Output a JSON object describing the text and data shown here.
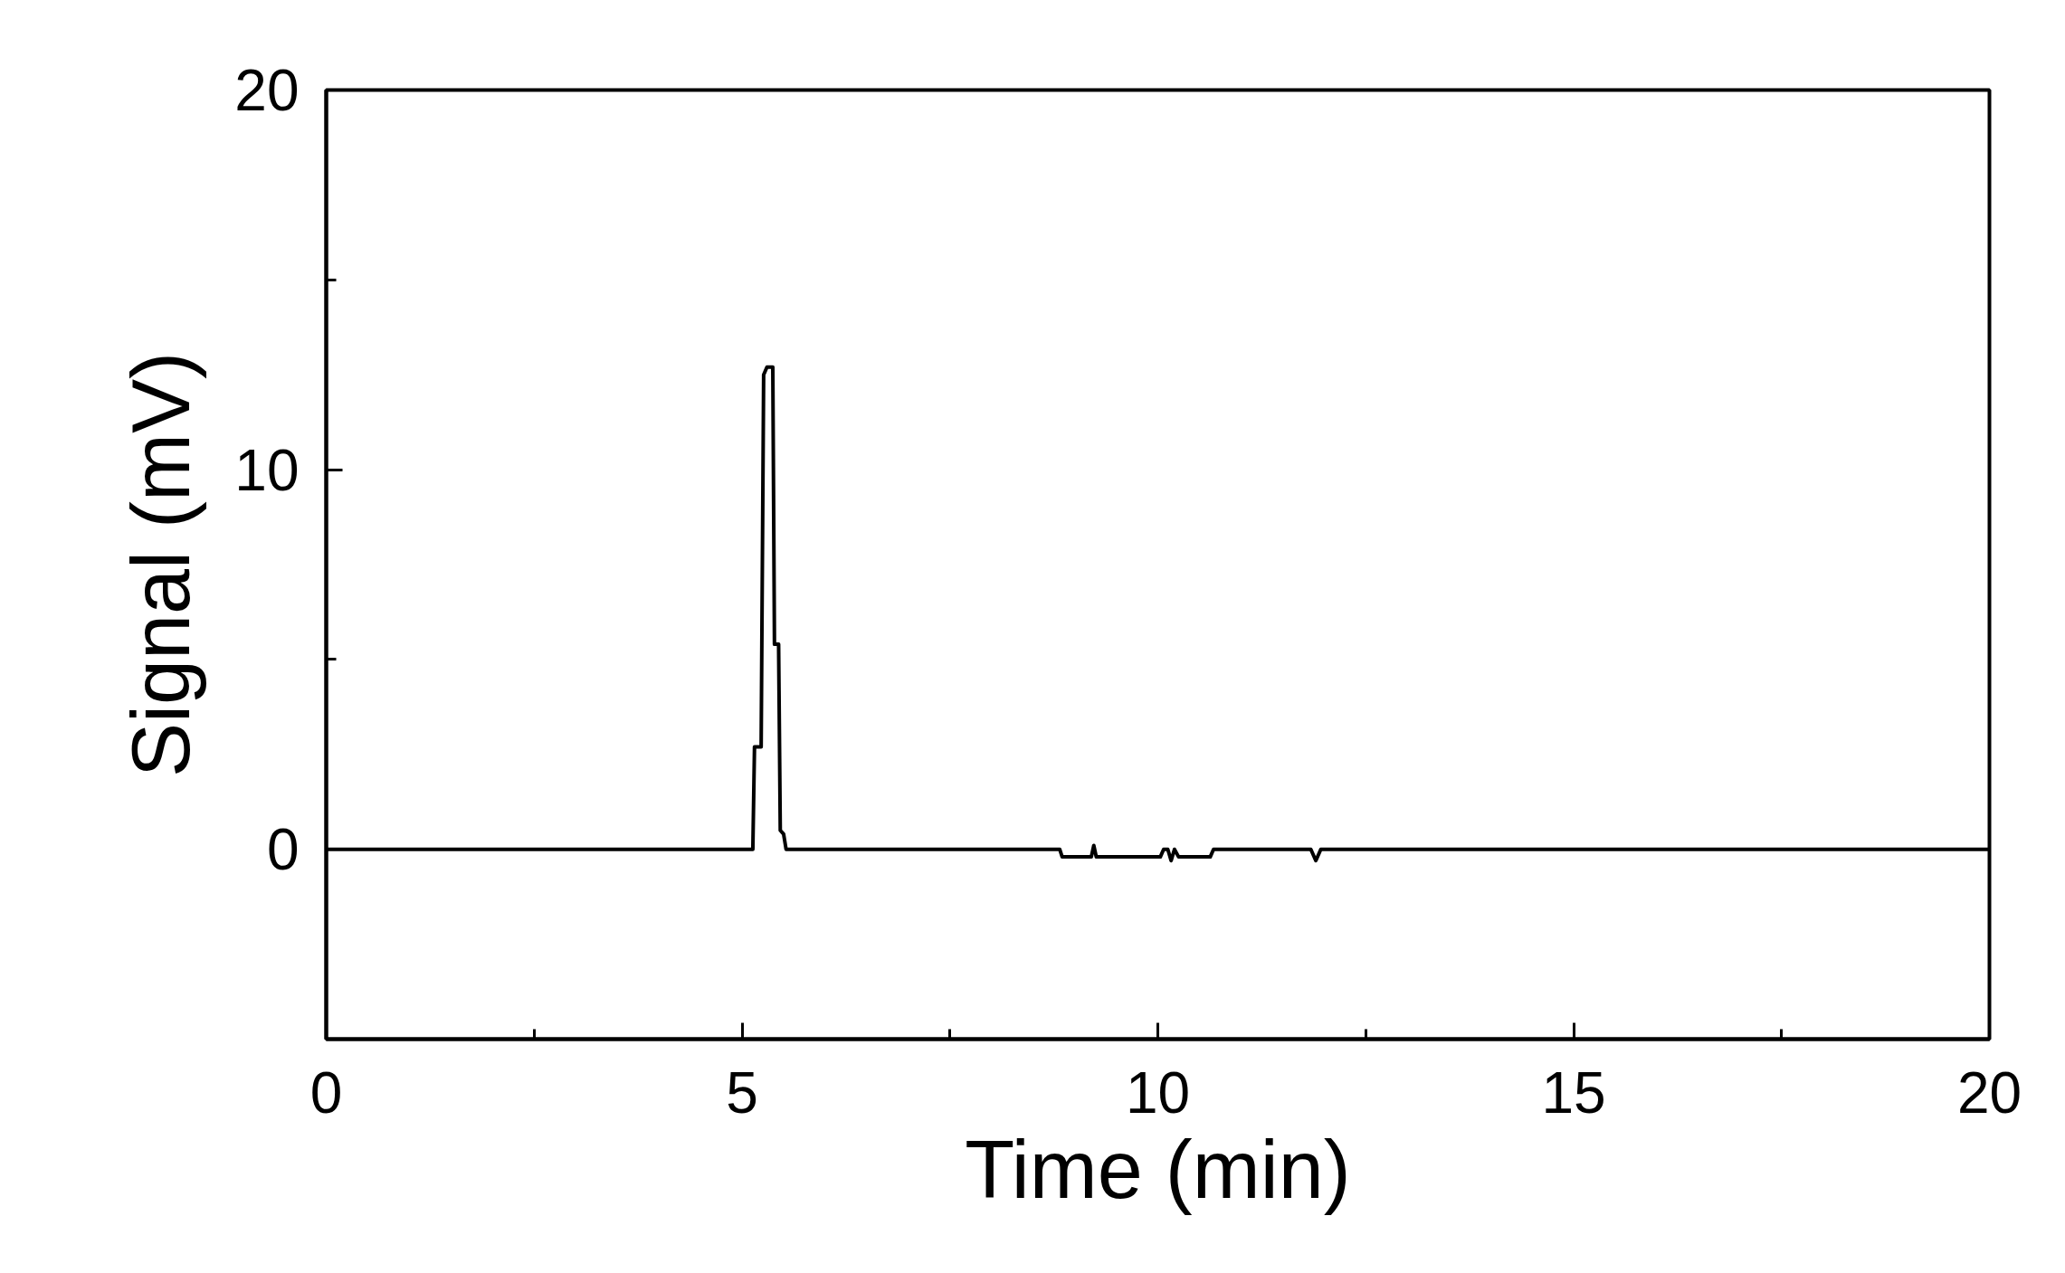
{
  "chart_data": {
    "type": "line",
    "xlabel": "Time (min)",
    "ylabel": "Signal (mV)",
    "xlim": [
      0,
      20
    ],
    "ylim": [
      -5,
      20
    ],
    "xticks": [
      0,
      {
        "value": 2.5,
        "label": null
      },
      5,
      {
        "value": 7.5,
        "label": null
      },
      10,
      {
        "value": 12.5,
        "label": null
      },
      15,
      {
        "value": 17.5,
        "label": null
      },
      20
    ],
    "yticks": [
      0,
      {
        "value": 5,
        "label": null
      },
      10,
      {
        "value": 15,
        "label": null
      },
      20
    ],
    "marker": "none",
    "line_style": "solid",
    "series": [
      {
        "color": "#000000",
        "x": [
          0,
          5.13,
          5.15,
          5.23,
          5.26,
          5.3,
          5.37,
          5.39,
          5.44,
          5.46,
          5.5,
          5.53,
          8.82,
          8.85,
          9.2,
          9.23,
          9.26,
          10.03,
          10.07,
          10.12,
          10.16,
          10.2,
          10.25,
          10.63,
          10.67,
          11.84,
          11.9,
          11.96,
          20
        ],
        "values": [
          0,
          0,
          2.7,
          2.7,
          12.5,
          12.7,
          12.7,
          5.4,
          5.4,
          0.5,
          0.4,
          0,
          0,
          -0.2,
          -0.2,
          0.1,
          -0.2,
          -0.2,
          0,
          0,
          -0.3,
          0,
          -0.2,
          -0.2,
          0,
          0,
          -0.3,
          0,
          0
        ]
      }
    ]
  }
}
